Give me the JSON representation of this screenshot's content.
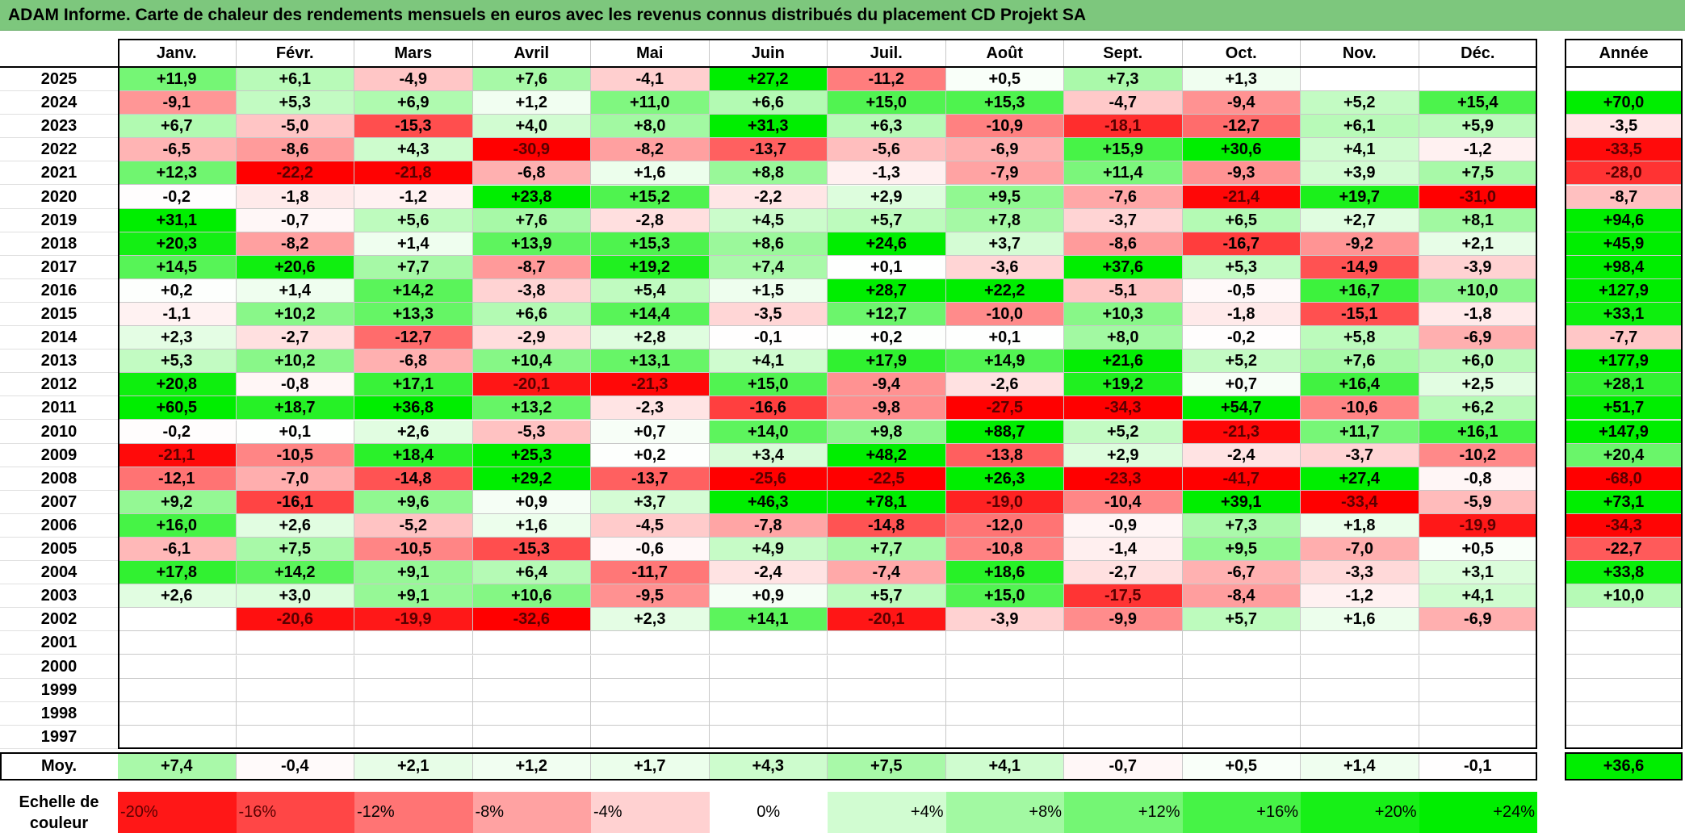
{
  "title": "ADAM Informe. Carte de chaleur des rendements mensuels en euros avec les revenus connus distribués du placement CD Projekt SA",
  "colors": {
    "title_bg": "#7dc77d",
    "negative_max": "#ff0000",
    "positive_max": "#00ee00",
    "neutral": "#ffffff"
  },
  "chart_data": {
    "type": "heatmap",
    "columns": [
      "Janv.",
      "Févr.",
      "Mars",
      "Avril",
      "Mai",
      "Juin",
      "Juil.",
      "Août",
      "Sept.",
      "Oct.",
      "Nov.",
      "Déc."
    ],
    "year_column_label": "Année",
    "rows": [
      {
        "year": "2025",
        "months": [
          "+11,9",
          "+6,1",
          "-4,9",
          "+7,6",
          "-4,1",
          "+27,2",
          "-11,2",
          "+0,5",
          "+7,3",
          "+1,3",
          "",
          ""
        ],
        "annual": ""
      },
      {
        "year": "2024",
        "months": [
          "-9,1",
          "+5,3",
          "+6,9",
          "+1,2",
          "+11,0",
          "+6,6",
          "+15,0",
          "+15,3",
          "-4,7",
          "-9,4",
          "+5,2",
          "+15,4"
        ],
        "annual": "+70,0"
      },
      {
        "year": "2023",
        "months": [
          "+6,7",
          "-5,0",
          "-15,3",
          "+4,0",
          "+8,0",
          "+31,3",
          "+6,3",
          "-10,9",
          "-18,1",
          "-12,7",
          "+6,1",
          "+5,9"
        ],
        "annual": "-3,5"
      },
      {
        "year": "2022",
        "months": [
          "-6,5",
          "-8,6",
          "+4,3",
          "-30,9",
          "-8,2",
          "-13,7",
          "-5,6",
          "-6,9",
          "+15,9",
          "+30,6",
          "+4,1",
          "-1,2"
        ],
        "annual": "-33,5"
      },
      {
        "year": "2021",
        "months": [
          "+12,3",
          "-22,2",
          "-21,8",
          "-6,8",
          "+1,6",
          "+8,8",
          "-1,3",
          "-7,9",
          "+11,4",
          "-9,3",
          "+3,9",
          "+7,5"
        ],
        "annual": "-28,0"
      },
      {
        "year": "2020",
        "months": [
          "-0,2",
          "-1,8",
          "-1,2",
          "+23,8",
          "+15,2",
          "-2,2",
          "+2,9",
          "+9,5",
          "-7,6",
          "-21,4",
          "+19,7",
          "-31,0"
        ],
        "annual": "-8,7"
      },
      {
        "year": "2019",
        "months": [
          "+31,1",
          "-0,7",
          "+5,6",
          "+7,6",
          "-2,8",
          "+4,5",
          "+5,7",
          "+7,8",
          "-3,7",
          "+6,5",
          "+2,7",
          "+8,1"
        ],
        "annual": "+94,6"
      },
      {
        "year": "2018",
        "months": [
          "+20,3",
          "-8,2",
          "+1,4",
          "+13,9",
          "+15,3",
          "+8,6",
          "+24,6",
          "+3,7",
          "-8,6",
          "-16,7",
          "-9,2",
          "+2,1"
        ],
        "annual": "+45,9"
      },
      {
        "year": "2017",
        "months": [
          "+14,5",
          "+20,6",
          "+7,7",
          "-8,7",
          "+19,2",
          "+7,4",
          "+0,1",
          "-3,6",
          "+37,6",
          "+5,3",
          "-14,9",
          "-3,9"
        ],
        "annual": "+98,4"
      },
      {
        "year": "2016",
        "months": [
          "+0,2",
          "+1,4",
          "+14,2",
          "-3,8",
          "+5,4",
          "+1,5",
          "+28,7",
          "+22,2",
          "-5,1",
          "-0,5",
          "+16,7",
          "+10,0"
        ],
        "annual": "+127,9"
      },
      {
        "year": "2015",
        "months": [
          "-1,1",
          "+10,2",
          "+13,3",
          "+6,6",
          "+14,4",
          "-3,5",
          "+12,7",
          "-10,0",
          "+10,3",
          "-1,8",
          "-15,1",
          "-1,8"
        ],
        "annual": "+33,1"
      },
      {
        "year": "2014",
        "months": [
          "+2,3",
          "-2,7",
          "-12,7",
          "-2,9",
          "+2,8",
          "-0,1",
          "+0,2",
          "+0,1",
          "+8,0",
          "-0,2",
          "+5,8",
          "-6,9"
        ],
        "annual": "-7,7"
      },
      {
        "year": "2013",
        "months": [
          "+5,3",
          "+10,2",
          "-6,8",
          "+10,4",
          "+13,1",
          "+4,1",
          "+17,9",
          "+14,9",
          "+21,6",
          "+5,2",
          "+7,6",
          "+6,0"
        ],
        "annual": "+177,9"
      },
      {
        "year": "2012",
        "months": [
          "+20,8",
          "-0,8",
          "+17,1",
          "-20,1",
          "-21,3",
          "+15,0",
          "-9,4",
          "-2,6",
          "+19,2",
          "+0,7",
          "+16,4",
          "+2,5"
        ],
        "annual": "+28,1"
      },
      {
        "year": "2011",
        "months": [
          "+60,5",
          "+18,7",
          "+36,8",
          "+13,2",
          "-2,3",
          "-16,6",
          "-9,8",
          "-27,5",
          "-34,3",
          "+54,7",
          "-10,6",
          "+6,2"
        ],
        "annual": "+51,7"
      },
      {
        "year": "2010",
        "months": [
          "-0,2",
          "+0,1",
          "+2,6",
          "-5,3",
          "+0,7",
          "+14,0",
          "+9,8",
          "+88,7",
          "+5,2",
          "-21,3",
          "+11,7",
          "+16,1"
        ],
        "annual": "+147,9"
      },
      {
        "year": "2009",
        "months": [
          "-21,1",
          "-10,5",
          "+18,4",
          "+25,3",
          "+0,2",
          "+3,4",
          "+48,2",
          "-13,8",
          "+2,9",
          "-2,4",
          "-3,7",
          "-10,2"
        ],
        "annual": "+20,4"
      },
      {
        "year": "2008",
        "months": [
          "-12,1",
          "-7,0",
          "-14,8",
          "+29,2",
          "-13,7",
          "-25,6",
          "-22,5",
          "+26,3",
          "-23,3",
          "-41,7",
          "+27,4",
          "-0,8"
        ],
        "annual": "-68,0"
      },
      {
        "year": "2007",
        "months": [
          "+9,2",
          "-16,1",
          "+9,6",
          "+0,9",
          "+3,7",
          "+46,3",
          "+78,1",
          "-19,0",
          "-10,4",
          "+39,1",
          "-33,4",
          "-5,9"
        ],
        "annual": "+73,1"
      },
      {
        "year": "2006",
        "months": [
          "+16,0",
          "+2,6",
          "-5,2",
          "+1,6",
          "-4,5",
          "-7,8",
          "-14,8",
          "-12,0",
          "-0,9",
          "+7,3",
          "+1,8",
          "-19,9"
        ],
        "annual": "-34,3"
      },
      {
        "year": "2005",
        "months": [
          "-6,1",
          "+7,5",
          "-10,5",
          "-15,3",
          "-0,6",
          "+4,9",
          "+7,7",
          "-10,8",
          "-1,4",
          "+9,5",
          "-7,0",
          "+0,5"
        ],
        "annual": "-22,7"
      },
      {
        "year": "2004",
        "months": [
          "+17,8",
          "+14,2",
          "+9,1",
          "+6,4",
          "-11,7",
          "-2,4",
          "-7,4",
          "+18,6",
          "-2,7",
          "-6,7",
          "-3,3",
          "+3,1"
        ],
        "annual": "+33,8"
      },
      {
        "year": "2003",
        "months": [
          "+2,6",
          "+3,0",
          "+9,1",
          "+10,6",
          "-9,5",
          "+0,9",
          "+5,7",
          "+15,0",
          "-17,5",
          "-8,4",
          "-1,2",
          "+4,1"
        ],
        "annual": "+10,0"
      },
      {
        "year": "2002",
        "months": [
          "",
          "-20,6",
          "-19,9",
          "-32,6",
          "+2,3",
          "+14,1",
          "-20,1",
          "-3,9",
          "-9,9",
          "+5,7",
          "+1,6",
          "-6,9"
        ],
        "annual": ""
      },
      {
        "year": "2001",
        "months": [
          "",
          "",
          "",
          "",
          "",
          "",
          "",
          "",
          "",
          "",
          "",
          ""
        ],
        "annual": ""
      },
      {
        "year": "2000",
        "months": [
          "",
          "",
          "",
          "",
          "",
          "",
          "",
          "",
          "",
          "",
          "",
          ""
        ],
        "annual": ""
      },
      {
        "year": "1999",
        "months": [
          "",
          "",
          "",
          "",
          "",
          "",
          "",
          "",
          "",
          "",
          "",
          ""
        ],
        "annual": ""
      },
      {
        "year": "1998",
        "months": [
          "",
          "",
          "",
          "",
          "",
          "",
          "",
          "",
          "",
          "",
          "",
          ""
        ],
        "annual": ""
      },
      {
        "year": "1997",
        "months": [
          "",
          "",
          "",
          "",
          "",
          "",
          "",
          "",
          "",
          "",
          "",
          ""
        ],
        "annual": ""
      }
    ],
    "average": {
      "label": "Moy.",
      "months": [
        "+7,4",
        "-0,4",
        "+2,1",
        "+1,2",
        "+1,7",
        "+4,3",
        "+7,5",
        "+4,1",
        "-0,7",
        "+0,5",
        "+1,4",
        "-0,1"
      ],
      "annual": "+36,6"
    },
    "scale": {
      "label": "Echelle de couleur",
      "steps": [
        {
          "label": "-20%",
          "value": -20
        },
        {
          "label": "-16%",
          "value": -16
        },
        {
          "label": "-12%",
          "value": -12
        },
        {
          "label": "-8%",
          "value": -8
        },
        {
          "label": "-4%",
          "value": -4
        },
        {
          "label": "0%",
          "value": 0
        },
        {
          "label": "+4%",
          "value": 4
        },
        {
          "label": "+8%",
          "value": 8
        },
        {
          "label": "+12%",
          "value": 12
        },
        {
          "label": "+16%",
          "value": 16
        },
        {
          "label": "+20%",
          "value": 20
        },
        {
          "label": "+24%",
          "value": 24
        }
      ]
    }
  }
}
